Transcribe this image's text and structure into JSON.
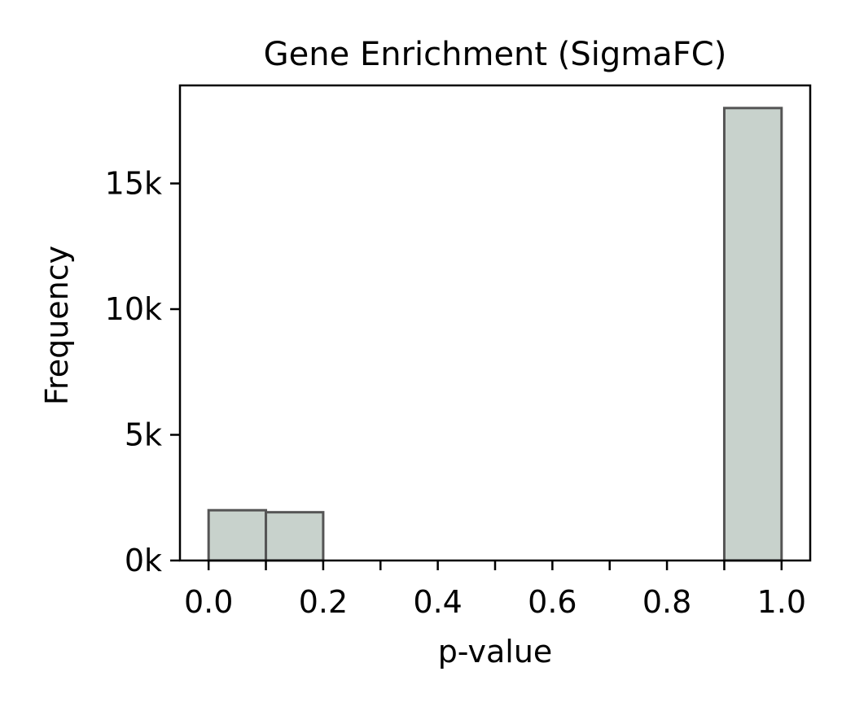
{
  "chart_data": {
    "type": "bar",
    "title": "Gene Enrichment (SigmaFC)",
    "xlabel": "p-value",
    "ylabel": "Frequency",
    "xlim": [
      -0.05,
      1.05
    ],
    "ylim": [
      0,
      18900
    ],
    "x_ticks": [
      {
        "value": 0.0,
        "label": "0.0"
      },
      {
        "value": 0.1,
        "label": ""
      },
      {
        "value": 0.2,
        "label": "0.2"
      },
      {
        "value": 0.3,
        "label": ""
      },
      {
        "value": 0.4,
        "label": "0.4"
      },
      {
        "value": 0.5,
        "label": ""
      },
      {
        "value": 0.6,
        "label": "0.6"
      },
      {
        "value": 0.7,
        "label": ""
      },
      {
        "value": 0.8,
        "label": "0.8"
      },
      {
        "value": 0.9,
        "label": ""
      },
      {
        "value": 1.0,
        "label": "1.0"
      }
    ],
    "y_ticks": [
      {
        "value": 0,
        "label": "0k"
      },
      {
        "value": 5000,
        "label": "5k"
      },
      {
        "value": 10000,
        "label": "10k"
      },
      {
        "value": 15000,
        "label": "15k"
      }
    ],
    "bins": [
      {
        "x0": 0.0,
        "x1": 0.1,
        "value": 2000
      },
      {
        "x0": 0.1,
        "x1": 0.2,
        "value": 1920
      },
      {
        "x0": 0.2,
        "x1": 0.3,
        "value": 0
      },
      {
        "x0": 0.3,
        "x1": 0.4,
        "value": 0
      },
      {
        "x0": 0.4,
        "x1": 0.5,
        "value": 0
      },
      {
        "x0": 0.5,
        "x1": 0.6,
        "value": 0
      },
      {
        "x0": 0.6,
        "x1": 0.7,
        "value": 0
      },
      {
        "x0": 0.7,
        "x1": 0.8,
        "value": 0
      },
      {
        "x0": 0.8,
        "x1": 0.9,
        "value": 0
      },
      {
        "x0": 0.9,
        "x1": 1.0,
        "value": 18000
      }
    ],
    "bar_color": "#c8d2cc",
    "bar_edge_color": "#555555",
    "grid": false,
    "legend": "none"
  }
}
